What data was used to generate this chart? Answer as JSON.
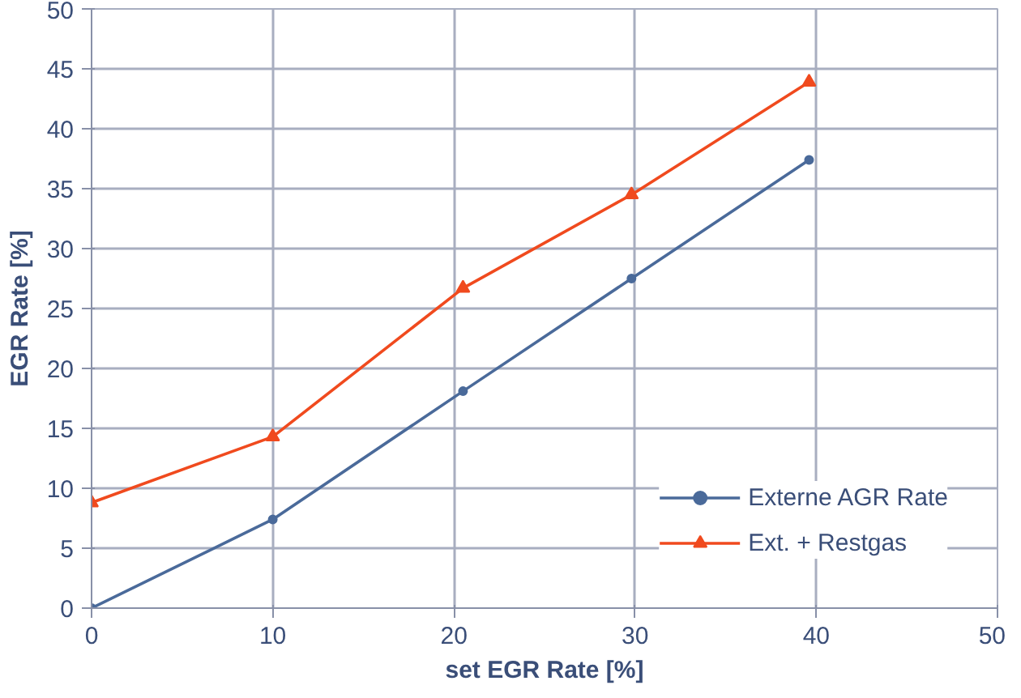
{
  "chart_data": {
    "type": "line",
    "xlabel": "set EGR Rate [%]",
    "ylabel": "EGR Rate [%]",
    "x": [
      0,
      10,
      20.5,
      29.8,
      39.6
    ],
    "series": [
      {
        "name": "Externe AGR Rate",
        "color": "#4a6a9a",
        "marker": "circle",
        "values": [
          0,
          7.4,
          18.1,
          27.5,
          37.4
        ]
      },
      {
        "name": "Ext. + Restgas",
        "color": "#f04a1e",
        "marker": "triangle",
        "values": [
          8.8,
          14.3,
          26.7,
          34.5,
          43.9
        ]
      }
    ],
    "xlim": [
      0,
      50
    ],
    "xticks": [
      0,
      10,
      20,
      30,
      40,
      50
    ],
    "ylim": [
      0,
      50
    ],
    "yticks": [
      0,
      5,
      10,
      15,
      20,
      25,
      30,
      35,
      40,
      45,
      50
    ],
    "grid": true,
    "legend": "bottom right",
    "line_style": "solid"
  }
}
